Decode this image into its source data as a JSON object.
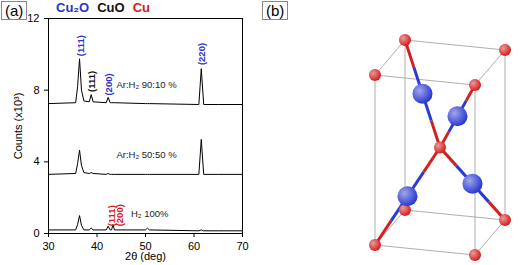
{
  "chart_data": {
    "type": "line",
    "panel_label": "(a)",
    "x_label": "2θ (deg)",
    "y_label": "Counts (x10³)",
    "xlim": [
      30,
      70
    ],
    "xticks": [
      30,
      40,
      50,
      60,
      70
    ],
    "ylim": [
      0,
      12
    ],
    "yticks": [
      0,
      4,
      8,
      12
    ],
    "header_labels": [
      {
        "text": "Cu₂O",
        "color": "#2b35c8"
      },
      {
        "text": "CuO",
        "color": "#111111"
      },
      {
        "text": "Cu",
        "color": "#d42020"
      }
    ],
    "x": [
      30,
      35.6,
      36.0,
      36.4,
      36.8,
      37.3,
      38.4,
      38.8,
      39.2,
      41.9,
      42.3,
      42.7,
      43.0,
      43.3,
      43.6,
      50.0,
      50.4,
      50.8,
      61.0,
      61.5,
      62.0,
      65,
      70
    ],
    "series": [
      {
        "name": "Ar:H₂ 90:10 %",
        "color": "#000000",
        "label_at": [
          44,
          8.3
        ],
        "values": [
          7.25,
          7.3,
          8.2,
          9.75,
          8.0,
          7.4,
          7.35,
          7.75,
          7.35,
          7.3,
          7.6,
          7.3,
          7.3,
          7.3,
          7.3,
          7.25,
          7.25,
          7.25,
          7.2,
          9.2,
          7.2,
          7.2,
          7.2
        ]
      },
      {
        "name": "Ar:H₂ 50:50 %",
        "color": "#000000",
        "label_at": [
          44,
          4.4
        ],
        "values": [
          3.3,
          3.35,
          3.9,
          4.65,
          3.8,
          3.4,
          3.35,
          3.4,
          3.35,
          3.3,
          3.35,
          3.3,
          3.3,
          3.3,
          3.3,
          3.3,
          3.3,
          3.3,
          3.3,
          5.25,
          3.3,
          3.3,
          3.3
        ]
      },
      {
        "name": "H₂ 100%",
        "color": "#000000",
        "label_at": [
          47,
          1.1
        ],
        "values": [
          0.2,
          0.2,
          0.5,
          1.0,
          0.45,
          0.2,
          0.2,
          0.3,
          0.2,
          0.2,
          0.4,
          0.2,
          0.2,
          0.5,
          0.2,
          0.2,
          0.3,
          0.2,
          0.15,
          0.2,
          0.15,
          0.15,
          0.15
        ]
      }
    ],
    "annotations": [
      {
        "text": "(111)",
        "x": 36.6,
        "y": 9.9,
        "color": "#2b35c8"
      },
      {
        "text": "(111)",
        "x": 38.9,
        "y": 7.9,
        "color": "#111111"
      },
      {
        "text": "(200)",
        "x": 42.4,
        "y": 7.7,
        "color": "#2b35c8"
      },
      {
        "text": "(220)",
        "x": 61.6,
        "y": 9.4,
        "color": "#2b35c8"
      },
      {
        "text": "(111)",
        "x": 43.1,
        "y": 0.4,
        "color": "#d42020"
      },
      {
        "text": "(200)",
        "x": 44.7,
        "y": 0.4,
        "color": "#d42020"
      }
    ]
  },
  "diagram": {
    "panel_label": "(b)",
    "species": [
      {
        "color": "#d42020",
        "positions": [
          [
            0,
            0,
            0
          ],
          [
            1,
            0,
            0
          ],
          [
            0,
            1,
            0
          ],
          [
            1,
            1,
            0
          ],
          [
            0,
            0,
            1
          ],
          [
            1,
            0,
            1
          ],
          [
            0,
            1,
            1
          ],
          [
            1,
            1,
            1
          ],
          [
            0.5,
            0.5,
            0.5
          ]
        ]
      },
      {
        "color": "#2b3bd0",
        "positions": [
          [
            0.25,
            0.25,
            0.25
          ],
          [
            0.75,
            0.75,
            0.25
          ],
          [
            0.75,
            0.25,
            0.75
          ],
          [
            0.25,
            0.75,
            0.75
          ]
        ]
      }
    ]
  }
}
